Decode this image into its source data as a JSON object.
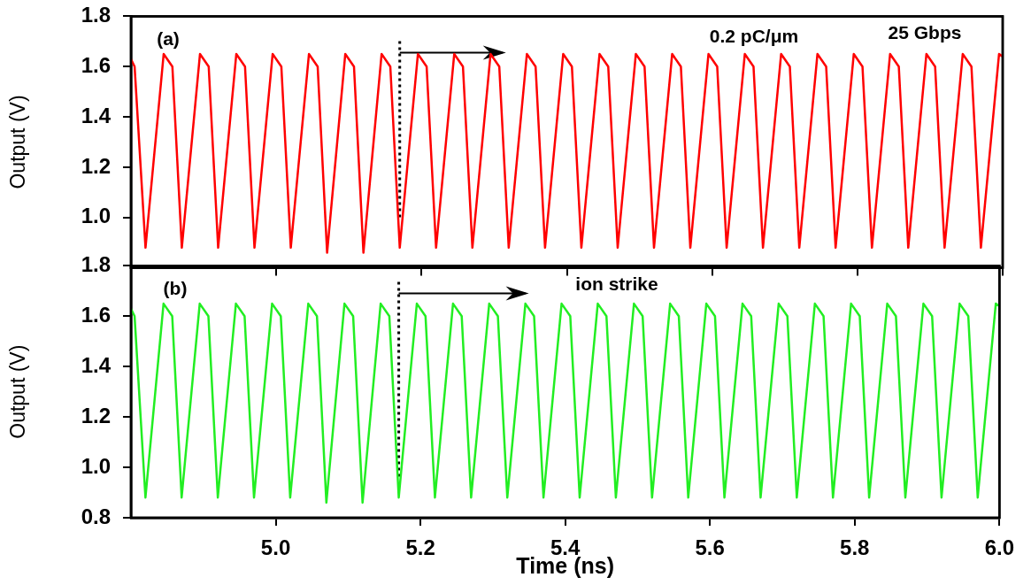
{
  "chart_data": [
    {
      "type": "line",
      "ylabel": "Output (V)",
      "marker": "none",
      "tick_labels": "y",
      "xlim": [
        4.8,
        6.0
      ],
      "ylim": [
        0.8,
        1.8
      ],
      "xticks": [
        5,
        5.2,
        5.4,
        5.6,
        5.8,
        6
      ],
      "yticks": [
        {
          "value": 1,
          "label": "1.0"
        },
        1.2,
        1.4,
        1.6,
        1.8
      ],
      "annotations": [
        "(a)",
        "0.2 pC/μm",
        "25 Gbps"
      ],
      "ref_lines": [
        {
          "axis": "x",
          "value": 5.17,
          "line_style": "dotted",
          "color": "#000000"
        }
      ],
      "series": [
        {
          "color": "#ff0000",
          "x": [
            4.8,
            4.805,
            4.82,
            4.845,
            4.857,
            4.87,
            4.895,
            4.907,
            4.92,
            4.945,
            4.957,
            4.97,
            4.995,
            5.007,
            5.02,
            5.045,
            5.057,
            5.07,
            5.095,
            5.107,
            5.12,
            5.145,
            5.157,
            5.17,
            5.195,
            5.207,
            5.22,
            5.245,
            5.257,
            5.27,
            5.295,
            5.307,
            5.32,
            5.345,
            5.357,
            5.37,
            5.395,
            5.407,
            5.42,
            5.445,
            5.457,
            5.47,
            5.495,
            5.507,
            5.52,
            5.545,
            5.557,
            5.57,
            5.595,
            5.607,
            5.62,
            5.645,
            5.657,
            5.67,
            5.695,
            5.707,
            5.72,
            5.745,
            5.757,
            5.77,
            5.795,
            5.807,
            5.82,
            5.845,
            5.857,
            5.87,
            5.895,
            5.907,
            5.92,
            5.945,
            5.957,
            5.97,
            5.995,
            6.0
          ],
          "values": [
            1.63,
            1.6,
            0.88,
            1.65,
            1.6,
            0.88,
            1.65,
            1.6,
            0.88,
            1.65,
            1.6,
            0.88,
            1.65,
            1.6,
            0.88,
            1.65,
            1.6,
            0.86,
            1.65,
            1.6,
            0.86,
            1.65,
            1.6,
            0.88,
            1.65,
            1.6,
            0.88,
            1.65,
            1.6,
            0.88,
            1.65,
            1.6,
            0.88,
            1.65,
            1.6,
            0.88,
            1.65,
            1.6,
            0.88,
            1.65,
            1.6,
            0.88,
            1.65,
            1.6,
            0.88,
            1.65,
            1.6,
            0.88,
            1.65,
            1.6,
            0.88,
            1.65,
            1.6,
            0.88,
            1.65,
            1.6,
            0.88,
            1.65,
            1.6,
            0.88,
            1.65,
            1.6,
            0.88,
            1.65,
            1.6,
            0.88,
            1.65,
            1.6,
            0.88,
            1.65,
            1.6,
            0.88,
            1.65,
            1.64
          ]
        }
      ]
    },
    {
      "type": "line",
      "xlabel": "Time (ns)",
      "ylabel": "Output (V)",
      "marker": "none",
      "xlim": [
        4.8,
        6.0
      ],
      "ylim": [
        0.8,
        1.8
      ],
      "xticks": [
        {
          "value": 5,
          "label": "5.0"
        },
        5.2,
        5.4,
        5.6,
        5.8,
        {
          "value": 6,
          "label": "6.0"
        }
      ],
      "yticks": [
        0.8,
        {
          "value": 1,
          "label": "1.0"
        },
        1.2,
        1.4,
        1.6,
        1.8
      ],
      "annotations": [
        "(b)",
        "ion strike"
      ],
      "ref_lines": [
        {
          "axis": "x",
          "value": 5.17,
          "line_style": "dotted",
          "color": "#000000"
        }
      ],
      "series": [
        {
          "color": "#22ee22",
          "x": [
            4.8,
            4.805,
            4.82,
            4.845,
            4.857,
            4.87,
            4.895,
            4.907,
            4.92,
            4.945,
            4.957,
            4.97,
            4.995,
            5.007,
            5.02,
            5.045,
            5.057,
            5.07,
            5.095,
            5.107,
            5.12,
            5.145,
            5.157,
            5.17,
            5.195,
            5.207,
            5.22,
            5.245,
            5.257,
            5.27,
            5.295,
            5.307,
            5.32,
            5.345,
            5.357,
            5.37,
            5.395,
            5.407,
            5.42,
            5.445,
            5.457,
            5.47,
            5.495,
            5.507,
            5.52,
            5.545,
            5.557,
            5.57,
            5.595,
            5.607,
            5.62,
            5.645,
            5.657,
            5.67,
            5.695,
            5.707,
            5.72,
            5.745,
            5.757,
            5.77,
            5.795,
            5.807,
            5.82,
            5.845,
            5.857,
            5.87,
            5.895,
            5.907,
            5.92,
            5.945,
            5.957,
            5.97,
            5.995,
            6.0
          ],
          "values": [
            1.63,
            1.6,
            0.88,
            1.65,
            1.6,
            0.88,
            1.65,
            1.6,
            0.88,
            1.65,
            1.6,
            0.88,
            1.65,
            1.6,
            0.88,
            1.65,
            1.6,
            0.86,
            1.65,
            1.6,
            0.86,
            1.65,
            1.6,
            0.88,
            1.65,
            1.6,
            0.88,
            1.65,
            1.6,
            0.88,
            1.65,
            1.6,
            0.88,
            1.65,
            1.6,
            0.88,
            1.65,
            1.6,
            0.88,
            1.65,
            1.6,
            0.88,
            1.65,
            1.6,
            0.88,
            1.65,
            1.6,
            0.88,
            1.65,
            1.6,
            0.88,
            1.65,
            1.6,
            0.88,
            1.65,
            1.6,
            0.88,
            1.65,
            1.6,
            0.88,
            1.65,
            1.6,
            0.88,
            1.65,
            1.6,
            0.88,
            1.65,
            1.6,
            0.88,
            1.65,
            1.6,
            0.88,
            1.65,
            1.64
          ]
        }
      ]
    }
  ]
}
